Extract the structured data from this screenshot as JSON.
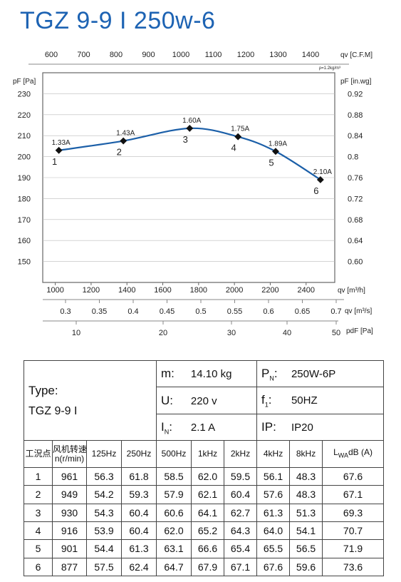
{
  "title": "TGZ 9-9 I 250w-6",
  "chart_data": {
    "type": "line",
    "x": [
      1020,
      1380,
      1750,
      2020,
      2230,
      2480
    ],
    "y": [
      203,
      207.5,
      213.5,
      209.5,
      202.5,
      189
    ],
    "point_numbers": [
      "1",
      "2",
      "3",
      "4",
      "5",
      "6"
    ],
    "current_labels": [
      "1.33A",
      "1.43A",
      "1.60A",
      "1.75A",
      "1.89A",
      "2.10A"
    ],
    "xlim": [
      930,
      2560
    ],
    "ylim": [
      140,
      240
    ],
    "y_ticks": [
      "150",
      "160",
      "170",
      "180",
      "190",
      "200",
      "210",
      "220",
      "230"
    ],
    "y_right_ticks": [
      "0.60",
      "0.64",
      "0.68",
      "0.72",
      "0.76",
      "0.8",
      "0.84",
      "0.88",
      "0.92"
    ],
    "x_ticks": [
      "1000",
      "1200",
      "1400",
      "1600",
      "1800",
      "2000",
      "2200",
      "2400"
    ],
    "x_top_ticks": [
      "600",
      "700",
      "800",
      "900",
      "1000",
      "1100",
      "1200",
      "1300",
      "1400"
    ],
    "x_m3s_ticks": [
      "0.3",
      "0.35",
      "0.4",
      "0.45",
      "0.5",
      "0.55",
      "0.6",
      "0.65",
      "0.7"
    ],
    "pa_ticks": [
      "10",
      "20",
      "30",
      "40",
      "50"
    ],
    "ylabel_left": "pF [Pa]",
    "ylabel_right": "pF [in.wg]",
    "xlabel_top": "qv [C.F.M]",
    "xlabel_bottom": "qv [m³/h]",
    "xlabel_m3s": "qv [m³/s]",
    "xlabel_pa": "pdF [Pa]",
    "density_note": "ρ=1.2kg/m³",
    "series_color": "#1b5fa8"
  },
  "specs": {
    "type_label": "Type:",
    "type_value": "TGZ 9-9 I",
    "m_label": "m:",
    "m_value": "14.10  kg",
    "u_label": "U:",
    "u_value": "220  v",
    "i_label": "I",
    "i_sub": "N",
    "i_value": "2.1  A",
    "p_label": "P",
    "p_sub": "N",
    "p_value": "250W-6P",
    "f_label": "f",
    "f_sub": "1",
    "f_value": "50HZ",
    "ip_label": "IP:",
    "ip_value": "IP20"
  },
  "table": {
    "headers": {
      "point": "工況点",
      "speed_line1": "风机转速",
      "speed_line2": "n(r/min)",
      "f125": "125Hz",
      "f250": "250Hz",
      "f500": "500Hz",
      "f1k": "1kHz",
      "f2k": "2kHz",
      "f4k": "4kHz",
      "f8k": "8kHz",
      "lwa_main": "L",
      "lwa_sub": "WA",
      "lwa_unit": "dB (A)"
    },
    "rows": [
      [
        "1",
        "961",
        "56.3",
        "61.8",
        "58.5",
        "62.0",
        "59.5",
        "56.1",
        "48.3",
        "67.6"
      ],
      [
        "2",
        "949",
        "54.2",
        "59.3",
        "57.9",
        "62.1",
        "60.4",
        "57.6",
        "48.3",
        "67.1"
      ],
      [
        "3",
        "930",
        "54.3",
        "60.4",
        "60.6",
        "64.1",
        "62.7",
        "61.3",
        "51.3",
        "69.3"
      ],
      [
        "4",
        "916",
        "53.9",
        "60.4",
        "62.0",
        "65.2",
        "64.3",
        "64.0",
        "54.1",
        "70.7"
      ],
      [
        "5",
        "901",
        "54.4",
        "61.3",
        "63.1",
        "66.6",
        "65.4",
        "65.5",
        "56.5",
        "71.9"
      ],
      [
        "6",
        "877",
        "57.5",
        "62.4",
        "64.7",
        "67.9",
        "67.1",
        "67.6",
        "59.6",
        "73.6"
      ]
    ]
  }
}
